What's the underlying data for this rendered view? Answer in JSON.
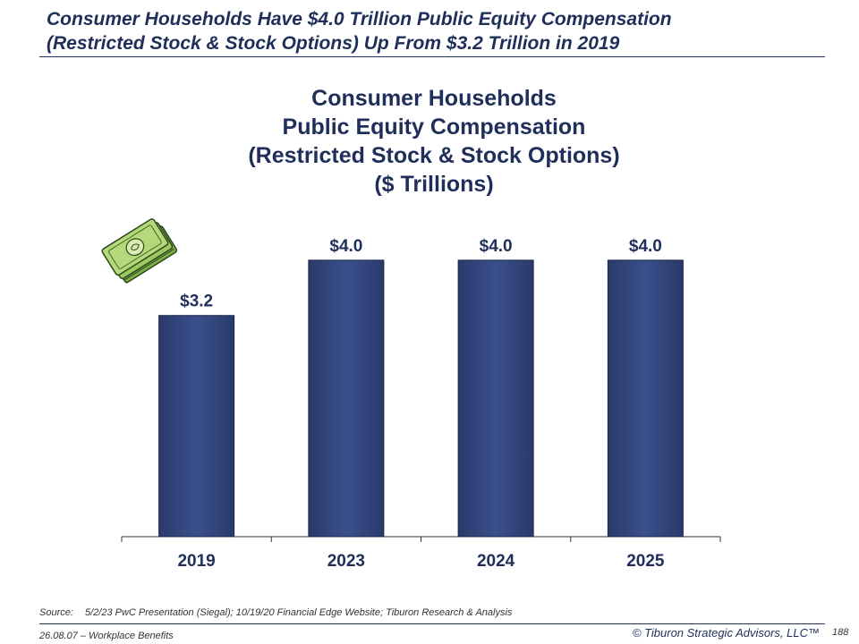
{
  "headline": {
    "line1": "Consumer Households Have $4.0 Trillion Public Equity Compensation",
    "line2": "(Restricted Stock & Stock Options) Up From $3.2 Trillion in 2019"
  },
  "chart_data": {
    "type": "bar",
    "title": [
      "Consumer Households",
      "Public Equity Compensation",
      "(Restricted Stock & Stock Options)",
      "($ Trillions)"
    ],
    "categories": [
      "2019",
      "2023",
      "2024",
      "2025"
    ],
    "values": [
      3.2,
      4.0,
      4.0,
      4.0
    ],
    "data_labels": [
      "$3.2",
      "$4.0",
      "$4.0",
      "$4.0"
    ],
    "xlabel": "",
    "ylabel": "",
    "ylim": [
      0,
      4.4
    ],
    "grid": false,
    "legend": "none",
    "bar_color": "#3a4f8c"
  },
  "decoration": {
    "icon": "money-stack-icon"
  },
  "source": {
    "label": "Source:",
    "text": "5/2/23 PwC Presentation (Siegal); 10/19/20 Financial Edge Website; Tiburon Research & Analysis"
  },
  "footer": {
    "left": "26.08.07 – Workplace Benefits",
    "right": "© Tiburon Strategic Advisors, LLC™",
    "page": "188"
  }
}
